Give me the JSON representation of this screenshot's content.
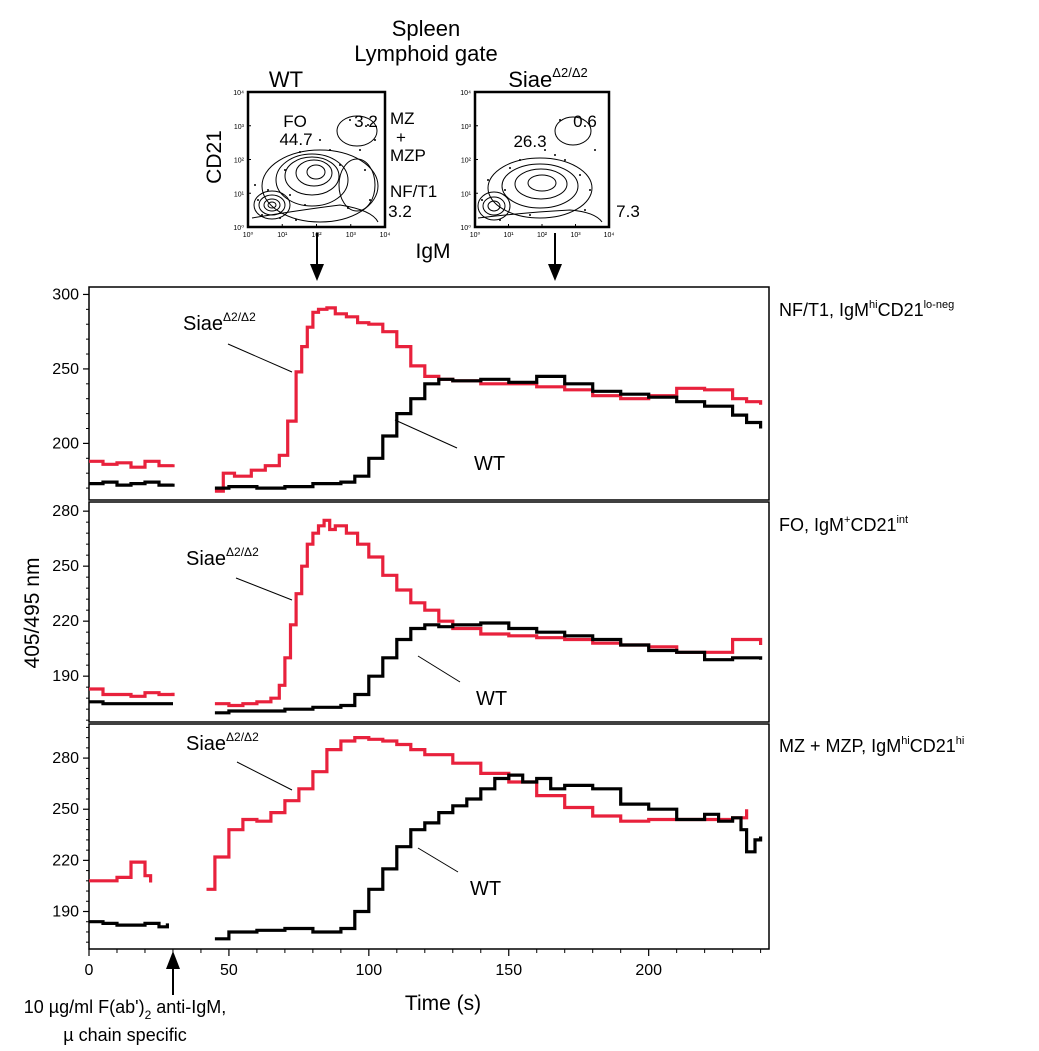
{
  "header": {
    "title_line1": "Spleen",
    "title_line2": "Lymphoid gate"
  },
  "facs": {
    "xlabel": "IgM",
    "ylabel": "CD21",
    "tick_labels": [
      "10⁰",
      "10¹",
      "10²",
      "10³",
      "10⁴"
    ],
    "wt": {
      "title": "WT",
      "gates": [
        {
          "name": "FO",
          "value": "44.7"
        },
        {
          "name": "MZ + MZP",
          "value": "3.2"
        },
        {
          "name": "NF/T1",
          "value": "3.2"
        }
      ],
      "gate_names": {
        "fo": "FO",
        "mz1": "MZ",
        "mz2": "+",
        "mz3": "MZP",
        "nf": "NF/T1"
      }
    },
    "siae": {
      "title_main": "Siae",
      "title_sup": "Δ2/Δ2",
      "gates": [
        {
          "name": "FO",
          "value": "26.3"
        },
        {
          "name": "MZ + MZP",
          "value": "0.6"
        },
        {
          "name": "NF/T1",
          "value": "7.3"
        }
      ]
    }
  },
  "annotation": {
    "stimulus_line1": "10 µg/ml F(ab')",
    "stimulus_sub": "2",
    "stimulus_line1b": " anti-IgM,",
    "stimulus_line2": "µ chain specific"
  },
  "chart_data": [
    {
      "type": "line",
      "title": "NF/T1, IgMhiCD21lo-neg",
      "title_parts": {
        "a": "NF/T1, IgM",
        "sup1": "hi",
        "b": "CD21",
        "sup2": "lo-neg"
      },
      "ylabel": "405/495 nm",
      "xlabel": "Time (s)",
      "xlim": [
        0,
        243
      ],
      "ylim": [
        162,
        305
      ],
      "yticks": [
        200,
        250,
        300
      ],
      "xticks": [
        0,
        50,
        100,
        150,
        200
      ],
      "series": [
        {
          "name": "SiaeΔ2/Δ2",
          "color": "#e8213c",
          "label_main": "Siae",
          "label_sup": "Δ2/Δ2",
          "x": [
            0,
            5,
            10,
            15,
            20,
            25,
            30,
            null,
            45,
            48,
            52,
            58,
            63,
            68,
            71,
            74,
            76,
            78,
            80,
            82,
            85,
            88,
            92,
            96,
            100,
            105,
            110,
            115,
            120,
            125,
            130,
            140,
            150,
            160,
            170,
            180,
            190,
            200,
            210,
            220,
            230,
            235,
            240
          ],
          "y": [
            188,
            186,
            187,
            184,
            188,
            185,
            186,
            null,
            168,
            180,
            178,
            182,
            185,
            192,
            215,
            248,
            265,
            278,
            288,
            290,
            291,
            287,
            285,
            281,
            280,
            275,
            265,
            252,
            245,
            243,
            242,
            240,
            240,
            238,
            236,
            232,
            230,
            232,
            237,
            236,
            230,
            228,
            226
          ]
        },
        {
          "name": "WT",
          "color": "#000000",
          "x": [
            0,
            5,
            10,
            15,
            20,
            25,
            30,
            null,
            45,
            50,
            60,
            70,
            80,
            90,
            95,
            100,
            105,
            110,
            115,
            120,
            125,
            130,
            140,
            150,
            160,
            170,
            180,
            190,
            200,
            210,
            220,
            230,
            235,
            240
          ],
          "y": [
            173,
            174,
            172,
            173,
            174,
            172,
            173,
            null,
            170,
            171,
            170,
            171,
            173,
            174,
            178,
            190,
            205,
            220,
            230,
            240,
            243,
            242,
            243,
            241,
            245,
            240,
            235,
            233,
            231,
            228,
            225,
            219,
            214,
            210
          ]
        }
      ],
      "annotations": [
        {
          "text": "WT"
        }
      ]
    },
    {
      "type": "line",
      "title": "FO, IgM+CD21int",
      "title_parts": {
        "a": "FO, IgM",
        "sup1": "+",
        "b": "CD21",
        "sup2": "int"
      },
      "ylabel": "405/495 nm",
      "xlabel": "Time (s)",
      "xlim": [
        0,
        243
      ],
      "ylim": [
        165,
        285
      ],
      "yticks": [
        190,
        220,
        250,
        280
      ],
      "xticks": [
        0,
        50,
        100,
        150,
        200
      ],
      "series": [
        {
          "name": "SiaeΔ2/Δ2",
          "color": "#e8213c",
          "label_main": "Siae",
          "label_sup": "Δ2/Δ2",
          "x": [
            0,
            5,
            10,
            15,
            20,
            25,
            30,
            null,
            45,
            50,
            55,
            60,
            65,
            68,
            70,
            72,
            74,
            76,
            78,
            80,
            82,
            84,
            86,
            88,
            92,
            96,
            100,
            105,
            110,
            115,
            120,
            125,
            130,
            140,
            150,
            160,
            170,
            180,
            190,
            200,
            210,
            220,
            230,
            240
          ],
          "y": [
            183,
            180,
            180,
            179,
            181,
            180,
            181,
            null,
            175,
            174,
            175,
            176,
            178,
            185,
            200,
            218,
            235,
            250,
            262,
            268,
            272,
            275,
            270,
            272,
            268,
            262,
            255,
            245,
            237,
            230,
            226,
            220,
            216,
            213,
            212,
            211,
            210,
            208,
            207,
            206,
            203,
            203,
            210,
            207
          ]
        },
        {
          "name": "WT",
          "color": "#000000",
          "x": [
            0,
            5,
            10,
            15,
            20,
            25,
            30,
            null,
            45,
            50,
            60,
            70,
            80,
            90,
            95,
            100,
            105,
            110,
            115,
            120,
            125,
            130,
            140,
            150,
            160,
            170,
            180,
            190,
            200,
            210,
            220,
            230,
            240
          ],
          "y": [
            176,
            175,
            175,
            175,
            175,
            175,
            175,
            null,
            170,
            171,
            171,
            172,
            173,
            174,
            180,
            190,
            200,
            210,
            216,
            218,
            217,
            218,
            219,
            216,
            214,
            212,
            210,
            207,
            204,
            203,
            199,
            200,
            199
          ]
        }
      ],
      "annotations": [
        {
          "text": "WT"
        }
      ]
    },
    {
      "type": "line",
      "title": "MZ + MZP, IgMhiCD21hi",
      "title_parts": {
        "a": "MZ + MZP,  IgM",
        "sup1": "hi",
        "b": "CD21",
        "sup2": "hi"
      },
      "ylabel": "405/495 nm",
      "xlabel": "Time (s)",
      "xlim": [
        0,
        243
      ],
      "ylim": [
        168,
        300
      ],
      "yticks": [
        190,
        220,
        250,
        280
      ],
      "xticks": [
        0,
        50,
        100,
        150,
        200
      ],
      "series": [
        {
          "name": "SiaeΔ2/Δ2",
          "color": "#e8213c",
          "label_main": "Siae",
          "label_sup": "Δ2/Δ2",
          "x": [
            0,
            5,
            10,
            15,
            20,
            22,
            null,
            42,
            45,
            50,
            55,
            60,
            65,
            70,
            75,
            80,
            85,
            90,
            95,
            100,
            105,
            110,
            115,
            120,
            130,
            140,
            150,
            160,
            170,
            180,
            190,
            200,
            210,
            220,
            230,
            235
          ],
          "y": [
            208,
            208,
            210,
            219,
            211,
            207,
            null,
            203,
            222,
            238,
            244,
            243,
            248,
            255,
            262,
            272,
            285,
            290,
            292,
            291,
            290,
            288,
            285,
            282,
            277,
            271,
            266,
            258,
            251,
            246,
            243,
            244,
            244,
            244,
            245,
            250
          ]
        },
        {
          "name": "WT",
          "color": "#000000",
          "x": [
            0,
            5,
            10,
            15,
            20,
            25,
            28,
            null,
            45,
            50,
            60,
            70,
            80,
            90,
            95,
            100,
            105,
            110,
            115,
            120,
            125,
            130,
            135,
            140,
            145,
            150,
            155,
            160,
            165,
            170,
            180,
            190,
            200,
            210,
            220,
            225,
            230,
            233,
            235,
            238,
            240
          ],
          "y": [
            184,
            183,
            182,
            182,
            183,
            181,
            183,
            null,
            174,
            178,
            179,
            180,
            178,
            180,
            190,
            203,
            215,
            228,
            238,
            242,
            248,
            252,
            256,
            262,
            268,
            270,
            266,
            268,
            262,
            264,
            262,
            253,
            250,
            244,
            247,
            243,
            245,
            238,
            225,
            232,
            234
          ]
        }
      ],
      "annotations": [
        {
          "text": "WT"
        }
      ]
    }
  ]
}
